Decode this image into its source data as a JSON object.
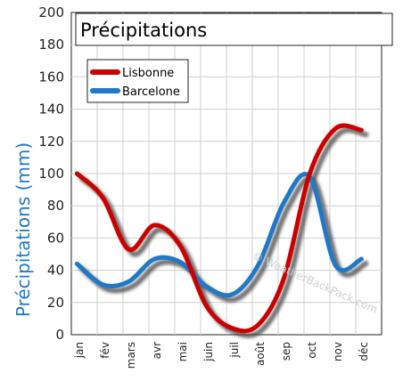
{
  "chart_data": {
    "type": "line",
    "title": "Précipitations",
    "ylabel": "Précipitations (mm)",
    "xlabel": "",
    "ylim": [
      0,
      200
    ],
    "yticks": [
      0,
      20,
      40,
      60,
      80,
      100,
      120,
      140,
      160,
      180,
      200
    ],
    "categories": [
      "jan",
      "fév",
      "mars",
      "avr",
      "mai",
      "juin",
      "juil",
      "août",
      "sep",
      "oct",
      "nov",
      "déc"
    ],
    "series": [
      {
        "name": "Lisbonne",
        "color": "#cc0000",
        "values": [
          100,
          85,
          53,
          68,
          55,
          18,
          4,
          6,
          35,
          100,
          128,
          127
        ]
      },
      {
        "name": "Barcelone",
        "color": "#1f78c8",
        "values": [
          44,
          31,
          33,
          47,
          45,
          30,
          25,
          43,
          82,
          98,
          43,
          47
        ]
      }
    ],
    "grid": true,
    "legend_position": "top-left",
    "watermark": "© WeatherBackPack.com",
    "colors": {
      "ylabel": "#1f78c8",
      "grid": "#cfcfcf",
      "shadow": "#444444"
    }
  }
}
